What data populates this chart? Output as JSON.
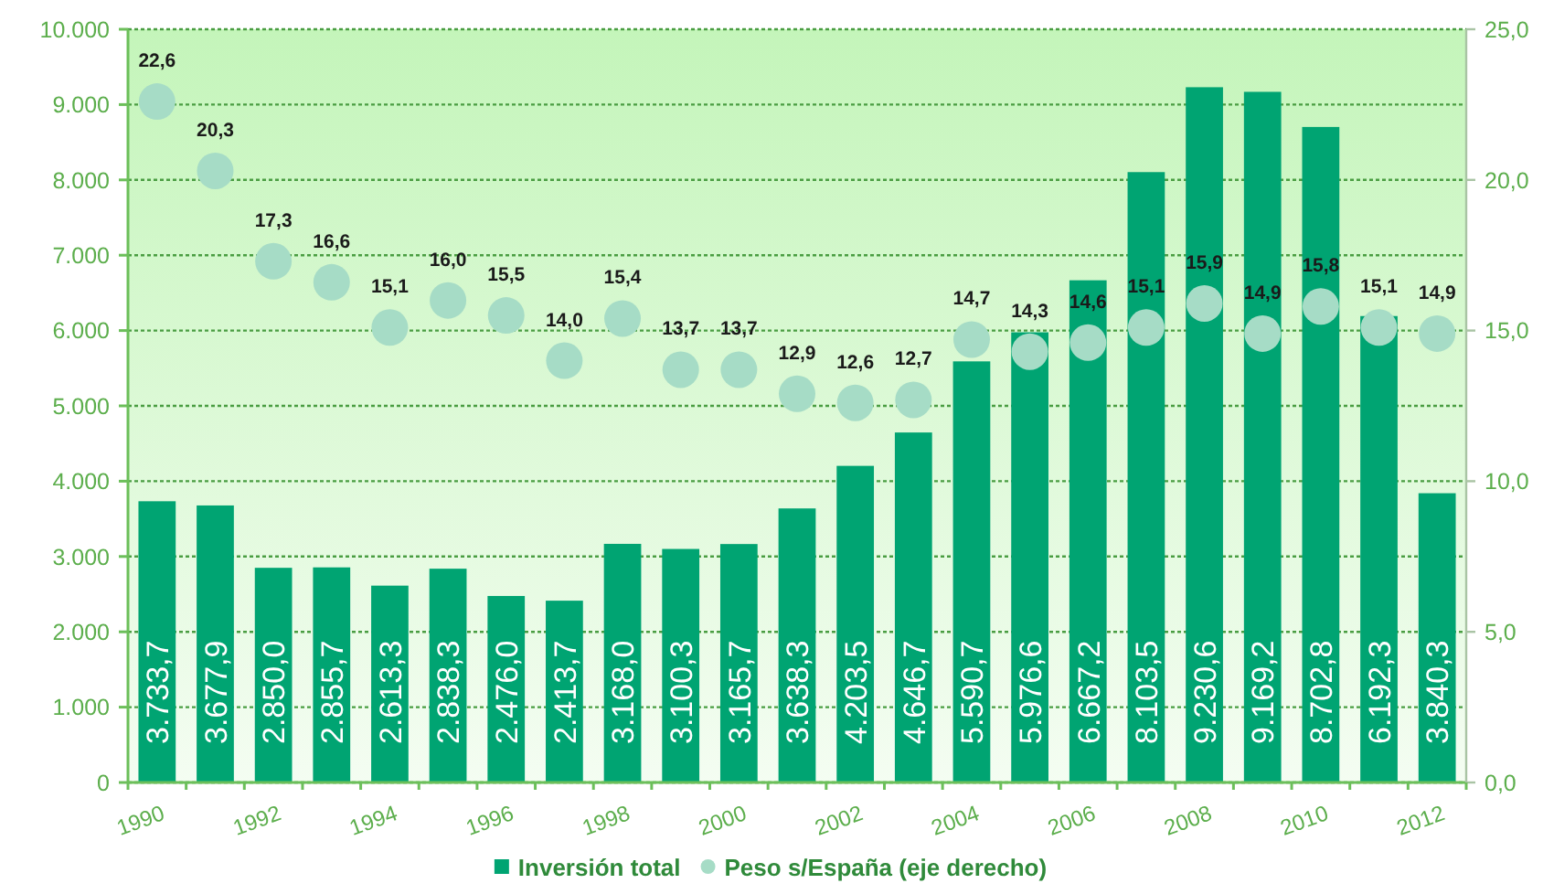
{
  "chart_data": {
    "type": "bar",
    "categories": [
      "1990",
      null,
      "1992",
      null,
      "1994",
      null,
      "1996",
      null,
      "1998",
      null,
      "2000",
      null,
      "2002",
      null,
      "2004",
      null,
      "2006",
      null,
      "2008",
      null,
      "2010",
      null,
      "2012"
    ],
    "series": [
      {
        "name": "Inversión total",
        "color": "#00a472",
        "values": [
          3733.7,
          3677.9,
          2850.0,
          2855.7,
          2613.3,
          2838.3,
          2476.0,
          2413.7,
          3168.0,
          3100.3,
          3165.7,
          3638.3,
          4203.5,
          4646.7,
          5590.7,
          5976.6,
          6667.2,
          8103.5,
          9230.6,
          9169.2,
          8702.8,
          6192.3,
          3840.3
        ],
        "value_labels": [
          "3.733,7",
          "3.677,9",
          "2.850,0",
          "2.855,7",
          "2.613,3",
          "2.838,3",
          "2.476,0",
          "2.413,7",
          "3.168,0",
          "3.100,3",
          "3.165,7",
          "3.638,3",
          "4.203,5",
          "4.646,7",
          "5.590,7",
          "5.976,6",
          "6.667,2",
          "8.103,5",
          "9.230,6",
          "9.169,2",
          "8.702,8",
          "6.192,3",
          "3.840,3"
        ]
      },
      {
        "name": "Peso s/España (eje derecho)",
        "type": "scatter",
        "axis": "y2",
        "marker": "circle",
        "color": "#a6dcc6",
        "values": [
          22.6,
          20.3,
          17.3,
          16.6,
          15.1,
          16.0,
          15.5,
          14.0,
          15.4,
          13.7,
          13.7,
          12.9,
          12.6,
          12.7,
          14.7,
          14.3,
          14.6,
          15.1,
          15.9,
          14.9,
          15.8,
          15.1,
          14.9
        ],
        "value_labels": [
          "22,6",
          "20,3",
          "17,3",
          "16,6",
          "15,1",
          "16,0",
          "15,5",
          "14,0",
          "15,4",
          "13,7",
          "13,7",
          "12,9",
          "12,6",
          "12,7",
          "14,7",
          "14,3",
          "14,6",
          "15,1",
          "15,9",
          "14,9",
          "15,8",
          "15,1",
          "14,9"
        ]
      }
    ],
    "ylim": [
      0,
      10000
    ],
    "yticks": [
      0,
      {
        "value": 1000,
        "label": "1.000"
      },
      {
        "value": 2000,
        "label": "2.000"
      },
      {
        "value": 3000,
        "label": "3.000"
      },
      {
        "value": 4000,
        "label": "4.000"
      },
      {
        "value": 5000,
        "label": "5.000"
      },
      {
        "value": 6000,
        "label": "6.000"
      },
      {
        "value": 7000,
        "label": "7.000"
      },
      {
        "value": 8000,
        "label": "8.000"
      },
      {
        "value": 9000,
        "label": "9.000"
      },
      {
        "value": 10000,
        "label": "10.000"
      }
    ],
    "y2lim": [
      0,
      25
    ],
    "y2ticks": [
      {
        "value": 0,
        "label": "0,0"
      },
      {
        "value": 5,
        "label": "5,0"
      },
      {
        "value": 10,
        "label": "10,0"
      },
      {
        "value": 15,
        "label": "15,0"
      },
      {
        "value": 20,
        "label": "20,0"
      },
      {
        "value": 25,
        "label": "25,0"
      }
    ],
    "grid": "y",
    "legend": "bottom"
  }
}
